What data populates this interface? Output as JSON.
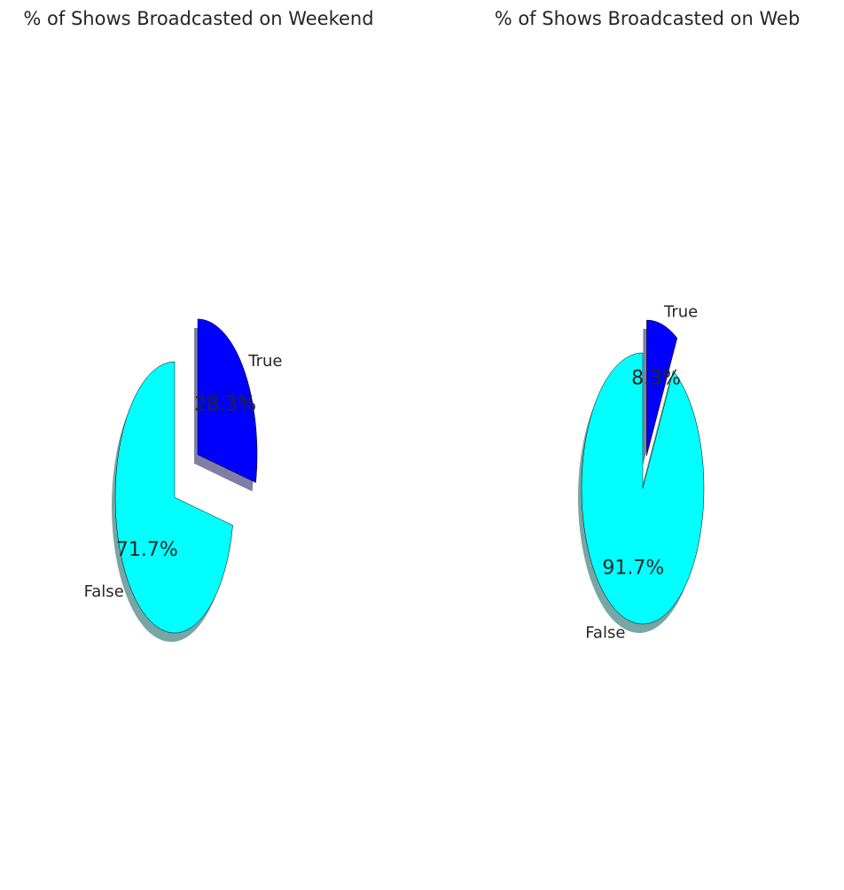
{
  "chart_data": [
    {
      "type": "pie",
      "title": "% of Shows Broadcasted on Weekend",
      "categories": [
        "False",
        "True"
      ],
      "values": [
        71.7,
        28.3
      ],
      "value_labels": [
        "71.7%",
        "28.3%"
      ],
      "colors": [
        "#00FFFF",
        "#0000FF"
      ],
      "exploded": [
        "False",
        "True"
      ],
      "shadow": true,
      "start_angle_deg": 90,
      "direction": "counterclockwise"
    },
    {
      "type": "pie",
      "title": "% of Shows Broadcasted on Web",
      "categories": [
        "False",
        "True"
      ],
      "values": [
        91.7,
        8.3
      ],
      "value_labels": [
        "91.7%",
        "8.3%"
      ],
      "colors": [
        "#00FFFF",
        "#0000FF"
      ],
      "exploded": [
        "True"
      ],
      "shadow": true,
      "start_angle_deg": 90,
      "direction": "counterclockwise"
    }
  ]
}
